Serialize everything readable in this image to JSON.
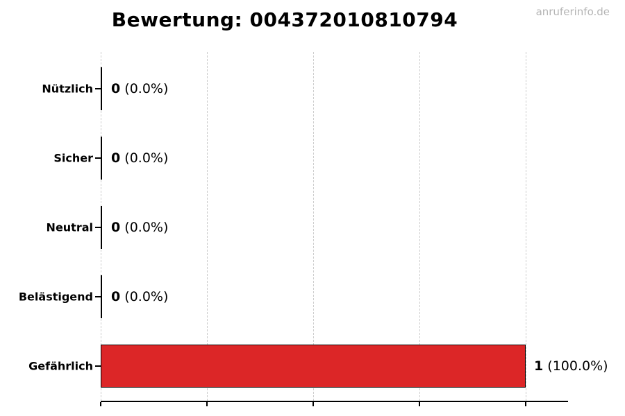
{
  "title": "Bewertung: 004372010810794",
  "watermark": "anruferinfo.de",
  "colors": {
    "bar_fill": "#dc2627",
    "bar_border": "#000000",
    "gridline": "#cccccc",
    "axis": "#000000",
    "watermark_text": "#b4b4b4",
    "title_text": "#000000"
  },
  "chart_data": {
    "type": "bar",
    "orientation": "horizontal",
    "title": "Bewertung: 004372010810794",
    "categories": [
      "Nützlich",
      "Sicher",
      "Neutral",
      "Belästigend",
      "Gefährlich"
    ],
    "values": [
      0,
      0,
      0,
      0,
      1
    ],
    "percentages": [
      0.0,
      0.0,
      0.0,
      0.0,
      100.0
    ],
    "bars": [
      {
        "label": "Nützlich",
        "count": "0",
        "pct": "(0.0%)",
        "value": 0,
        "percent": 0.0
      },
      {
        "label": "Sicher",
        "count": "0",
        "pct": "(0.0%)",
        "value": 0,
        "percent": 0.0
      },
      {
        "label": "Neutral",
        "count": "0",
        "pct": "(0.0%)",
        "value": 0,
        "percent": 0.0
      },
      {
        "label": "Belästigend",
        "count": "0",
        "pct": "(0.0%)",
        "value": 0,
        "percent": 0.0
      },
      {
        "label": "Gefährlich",
        "count": "1",
        "pct": "(100.0%)",
        "value": 1,
        "percent": 100.0
      }
    ],
    "xlabel": "",
    "ylabel": "",
    "xlim": [
      0,
      1.1
    ],
    "x_ticks_count": 5,
    "x_tick_labels_visible": false,
    "grid": "vertical-dashed",
    "legend": "none"
  }
}
